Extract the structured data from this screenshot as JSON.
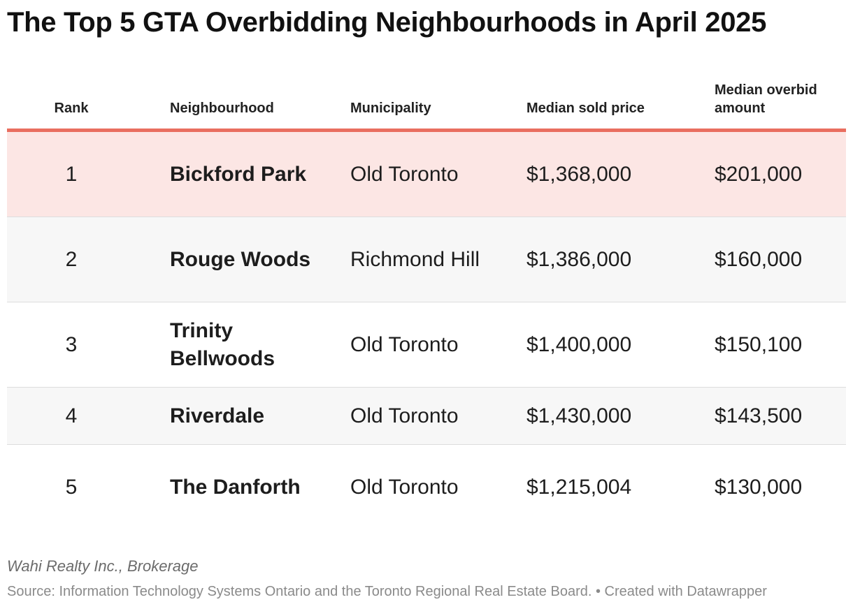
{
  "chart_data": {
    "type": "table",
    "title": "The Top 5 GTA Overbidding Neighbourhoods in April 2025",
    "columns": [
      "Rank",
      "Neighbourhood",
      "Municipality",
      "Median sold price",
      "Median overbid amount"
    ],
    "rows": [
      {
        "rank": "1",
        "neighbourhood": "Bickford Park",
        "municipality": "Old Toronto",
        "median_sold_price": "$1,368,000",
        "median_overbid_amount": "$201,000"
      },
      {
        "rank": "2",
        "neighbourhood": "Rouge Woods",
        "municipality": "Richmond Hill",
        "median_sold_price": "$1,386,000",
        "median_overbid_amount": "$160,000"
      },
      {
        "rank": "3",
        "neighbourhood": "Trinity Bellwoods",
        "municipality": "Old Toronto",
        "median_sold_price": "$1,400,000",
        "median_overbid_amount": "$150,100"
      },
      {
        "rank": "4",
        "neighbourhood": "Riverdale",
        "municipality": "Old Toronto",
        "median_sold_price": "$1,430,000",
        "median_overbid_amount": "$143,500"
      },
      {
        "rank": "5",
        "neighbourhood": "The Danforth",
        "municipality": "Old Toronto",
        "median_sold_price": "$1,215,004",
        "median_overbid_amount": "$130,000"
      }
    ],
    "highlight_row": 0
  },
  "footer": {
    "byline": "Wahi Realty Inc., Brokerage",
    "source": "Source: Information Technology Systems Ontario and the Toronto Regional Real Estate Board. • Created with Datawrapper"
  },
  "colors": {
    "header_rule": "#e96e5f",
    "highlight_bg": "#fce6e4",
    "alt_bg": "#f7f7f7"
  }
}
